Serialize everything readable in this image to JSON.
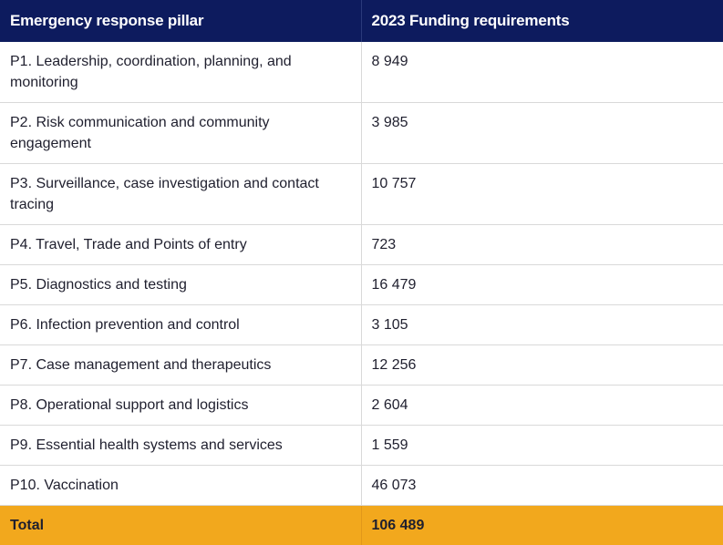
{
  "table": {
    "headers": [
      "Emergency response pillar",
      "2023 Funding requirements"
    ],
    "rows": [
      {
        "pillar": "P1. Leadership, coordination, planning, and monitoring",
        "funding": "8 949"
      },
      {
        "pillar": "P2. Risk communication and community engagement",
        "funding": "3 985"
      },
      {
        "pillar": "P3. Surveillance, case investigation and contact tracing",
        "funding": "10 757"
      },
      {
        "pillar": "P4. Travel, Trade and Points of entry",
        "funding": "723"
      },
      {
        "pillar": "P5. Diagnostics and testing",
        "funding": "16 479"
      },
      {
        "pillar": "P6. Infection prevention and control",
        "funding": "3 105"
      },
      {
        "pillar": "P7. Case management and therapeutics",
        "funding": "12 256"
      },
      {
        "pillar": "P8. Operational support and logistics",
        "funding": "2 604"
      },
      {
        "pillar": "P9. Essential health systems and services",
        "funding": "1 559"
      },
      {
        "pillar": "P10. Vaccination",
        "funding": "46 073"
      }
    ],
    "total": {
      "label": "Total",
      "funding": "106 489"
    }
  },
  "colors": {
    "header_bg": "#0d1b5e",
    "header_text": "#ffffff",
    "total_bg": "#f2a81d",
    "border": "#d9d9d9"
  }
}
